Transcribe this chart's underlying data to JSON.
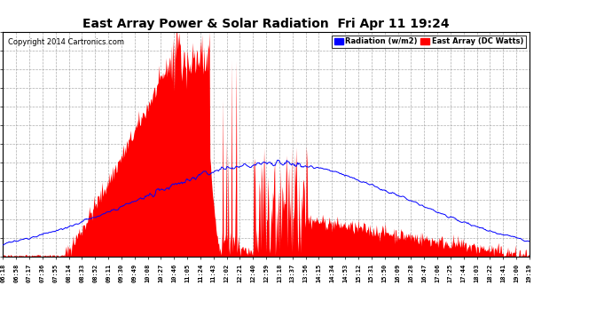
{
  "title": "East Array Power & Solar Radiation  Fri Apr 11 19:24",
  "copyright": "Copyright 2014 Cartronics.com",
  "legend_radiation": "Radiation (w/m2)",
  "legend_east": "East Array (DC Watts)",
  "legend_radiation_color": "#0000ff",
  "legend_east_color": "#ff0000",
  "background_color": "#ffffff",
  "plot_bg_color": "#ffffff",
  "grid_color": "#999999",
  "fill_color": "#ff0000",
  "line_color": "#0000ff",
  "ymax": 1828.0,
  "ymin": 0.0,
  "yticks": [
    0.0,
    152.3,
    304.7,
    457.0,
    609.3,
    761.7,
    914.0,
    1066.3,
    1218.7,
    1371.0,
    1523.3,
    1675.7,
    1828.0
  ],
  "x_labels": [
    "06:18",
    "06:58",
    "07:17",
    "07:36",
    "07:55",
    "08:14",
    "08:33",
    "08:52",
    "09:11",
    "09:30",
    "09:49",
    "10:08",
    "10:27",
    "10:46",
    "11:05",
    "11:24",
    "11:43",
    "12:02",
    "12:21",
    "12:40",
    "12:59",
    "13:18",
    "13:37",
    "13:56",
    "14:15",
    "14:34",
    "14:53",
    "15:12",
    "15:31",
    "15:50",
    "16:09",
    "16:28",
    "16:47",
    "17:06",
    "17:25",
    "17:44",
    "18:03",
    "18:22",
    "18:41",
    "19:00",
    "19:19"
  ]
}
